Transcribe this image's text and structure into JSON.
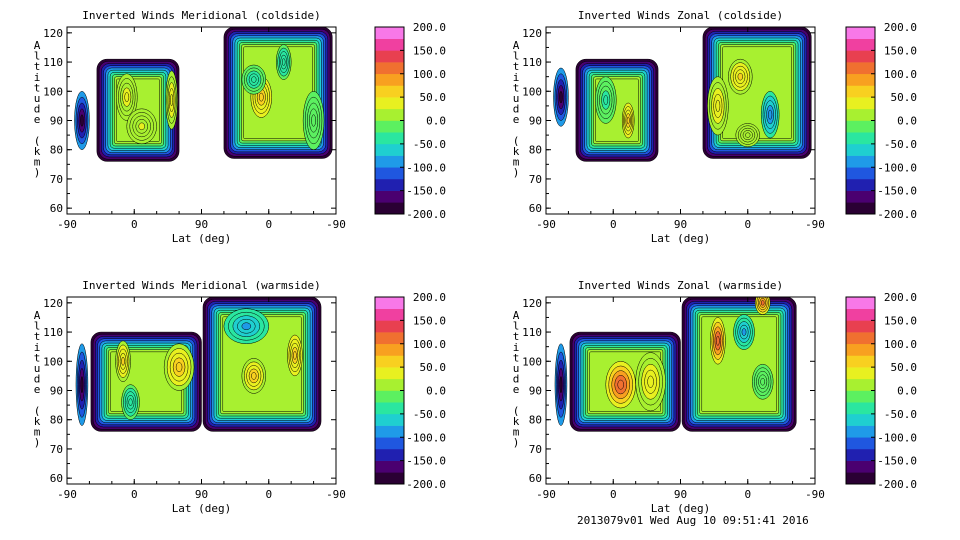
{
  "footer": "2013079v01 Wed Aug 10 09:51:41 2016",
  "colorbar": {
    "min": -200,
    "max": 200,
    "tick_labels": [
      "200.0",
      "150.0",
      "100.0",
      "50.0",
      "0.0",
      "-50.0",
      "-100.0",
      "-150.0",
      "-200.0"
    ],
    "colors": [
      "#2a0033",
      "#4a0070",
      "#2020b0",
      "#1f57e0",
      "#1f9ae8",
      "#1fcfd0",
      "#2ae6a0",
      "#5cf060",
      "#a8f030",
      "#e8f020",
      "#f8d020",
      "#f8a020",
      "#f07030",
      "#e84050",
      "#f040a0",
      "#f878e8"
    ]
  },
  "chart_data": [
    {
      "type": "heatmap",
      "title": "Inverted Winds Meridional (coldside)",
      "xlabel": "Lat (deg)",
      "ylabel": "Altitude (km)",
      "x_ticks": [
        "-90",
        "0",
        "90",
        "0",
        "-90"
      ],
      "y_ticks": [
        "60",
        "70",
        "80",
        "90",
        "100",
        "110",
        "120"
      ],
      "ylim": [
        58,
        122
      ],
      "xlim": [
        -90,
        270
      ],
      "colorscale": [
        -200,
        200
      ],
      "regions": [
        {
          "x0": -50,
          "x1": 60,
          "y0": 76,
          "y1": 111
        },
        {
          "x0": 120,
          "x1": 265,
          "y0": 77,
          "y1": 122
        }
      ],
      "contour_spots": [
        {
          "x": -70,
          "y": 90,
          "value": -200,
          "rx": 10,
          "ry": 10
        },
        {
          "x": -10,
          "y": 98,
          "value": 35,
          "rx": 14,
          "ry": 8
        },
        {
          "x": 50,
          "y": 97,
          "value": 45,
          "rx": 8,
          "ry": 10
        },
        {
          "x": 10,
          "y": 88,
          "value": 25,
          "rx": 20,
          "ry": 6
        },
        {
          "x": 170,
          "y": 98,
          "value": 70,
          "rx": 14,
          "ry": 7
        },
        {
          "x": 160,
          "y": 104,
          "value": -40,
          "rx": 16,
          "ry": 5
        },
        {
          "x": 200,
          "y": 110,
          "value": -50,
          "rx": 10,
          "ry": 6
        },
        {
          "x": 240,
          "y": 90,
          "value": -20,
          "rx": 14,
          "ry": 10
        }
      ]
    },
    {
      "type": "heatmap",
      "title": "Inverted Winds Zonal (coldside)",
      "xlabel": "Lat (deg)",
      "ylabel": "Altitude (km)",
      "x_ticks": [
        "-90",
        "0",
        "90",
        "0",
        "-90"
      ],
      "y_ticks": [
        "60",
        "70",
        "80",
        "90",
        "100",
        "110",
        "120"
      ],
      "ylim": [
        58,
        122
      ],
      "xlim": [
        -90,
        270
      ],
      "colorscale": [
        -200,
        200
      ],
      "regions": [
        {
          "x0": -50,
          "x1": 60,
          "y0": 76,
          "y1": 111
        },
        {
          "x0": 120,
          "x1": 265,
          "y0": 77,
          "y1": 122
        }
      ],
      "contour_spots": [
        {
          "x": -70,
          "y": 98,
          "value": -200,
          "rx": 10,
          "ry": 10
        },
        {
          "x": 20,
          "y": 90,
          "value": 70,
          "rx": 8,
          "ry": 6
        },
        {
          "x": -10,
          "y": 97,
          "value": -30,
          "rx": 14,
          "ry": 8
        },
        {
          "x": 140,
          "y": 95,
          "value": 40,
          "rx": 14,
          "ry": 10
        },
        {
          "x": 170,
          "y": 105,
          "value": 50,
          "rx": 16,
          "ry": 6
        },
        {
          "x": 210,
          "y": 92,
          "value": -100,
          "rx": 12,
          "ry": 8
        },
        {
          "x": 180,
          "y": 85,
          "value": 20,
          "rx": 16,
          "ry": 4
        }
      ]
    },
    {
      "type": "heatmap",
      "title": "Inverted Winds Meridional (warmside)",
      "xlabel": "Lat (deg)",
      "ylabel": "Altitude (km)",
      "x_ticks": [
        "-90",
        "0",
        "90",
        "0",
        "-90"
      ],
      "y_ticks": [
        "60",
        "70",
        "80",
        "90",
        "100",
        "110",
        "120"
      ],
      "ylim": [
        58,
        122
      ],
      "xlim": [
        -90,
        270
      ],
      "colorscale": [
        -200,
        200
      ],
      "regions": [
        {
          "x0": -58,
          "x1": 90,
          "y0": 76,
          "y1": 110
        },
        {
          "x0": 92,
          "x1": 250,
          "y0": 76,
          "y1": 122
        }
      ],
      "contour_spots": [
        {
          "x": -70,
          "y": 92,
          "value": -200,
          "rx": 8,
          "ry": 14
        },
        {
          "x": -15,
          "y": 100,
          "value": 50,
          "rx": 10,
          "ry": 7
        },
        {
          "x": 60,
          "y": 98,
          "value": 60,
          "rx": 20,
          "ry": 8
        },
        {
          "x": -5,
          "y": 86,
          "value": -50,
          "rx": 12,
          "ry": 6
        },
        {
          "x": 160,
          "y": 95,
          "value": 60,
          "rx": 16,
          "ry": 6
        },
        {
          "x": 215,
          "y": 102,
          "value": 70,
          "rx": 10,
          "ry": 7
        },
        {
          "x": 150,
          "y": 112,
          "value": -80,
          "rx": 30,
          "ry": 6
        }
      ]
    },
    {
      "type": "heatmap",
      "title": "Inverted Winds Zonal (warmside)",
      "xlabel": "Lat (deg)",
      "ylabel": "Altitude (km)",
      "x_ticks": [
        "-90",
        "0",
        "90",
        "0",
        "-90"
      ],
      "y_ticks": [
        "60",
        "70",
        "80",
        "90",
        "100",
        "110",
        "120"
      ],
      "ylim": [
        58,
        122
      ],
      "xlim": [
        -90,
        270
      ],
      "colorscale": [
        -200,
        200
      ],
      "regions": [
        {
          "x0": -58,
          "x1": 90,
          "y0": 76,
          "y1": 110
        },
        {
          "x0": 92,
          "x1": 245,
          "y0": 76,
          "y1": 122
        }
      ],
      "contour_spots": [
        {
          "x": -70,
          "y": 92,
          "value": -200,
          "rx": 8,
          "ry": 14
        },
        {
          "x": 10,
          "y": 92,
          "value": 120,
          "rx": 20,
          "ry": 8
        },
        {
          "x": 50,
          "y": 93,
          "value": 40,
          "rx": 20,
          "ry": 10
        },
        {
          "x": 140,
          "y": 107,
          "value": 120,
          "rx": 10,
          "ry": 8
        },
        {
          "x": 175,
          "y": 110,
          "value": -80,
          "rx": 14,
          "ry": 6
        },
        {
          "x": 200,
          "y": 120,
          "value": 100,
          "rx": 10,
          "ry": 4
        },
        {
          "x": 200,
          "y": 93,
          "value": -20,
          "rx": 14,
          "ry": 6
        }
      ]
    }
  ]
}
